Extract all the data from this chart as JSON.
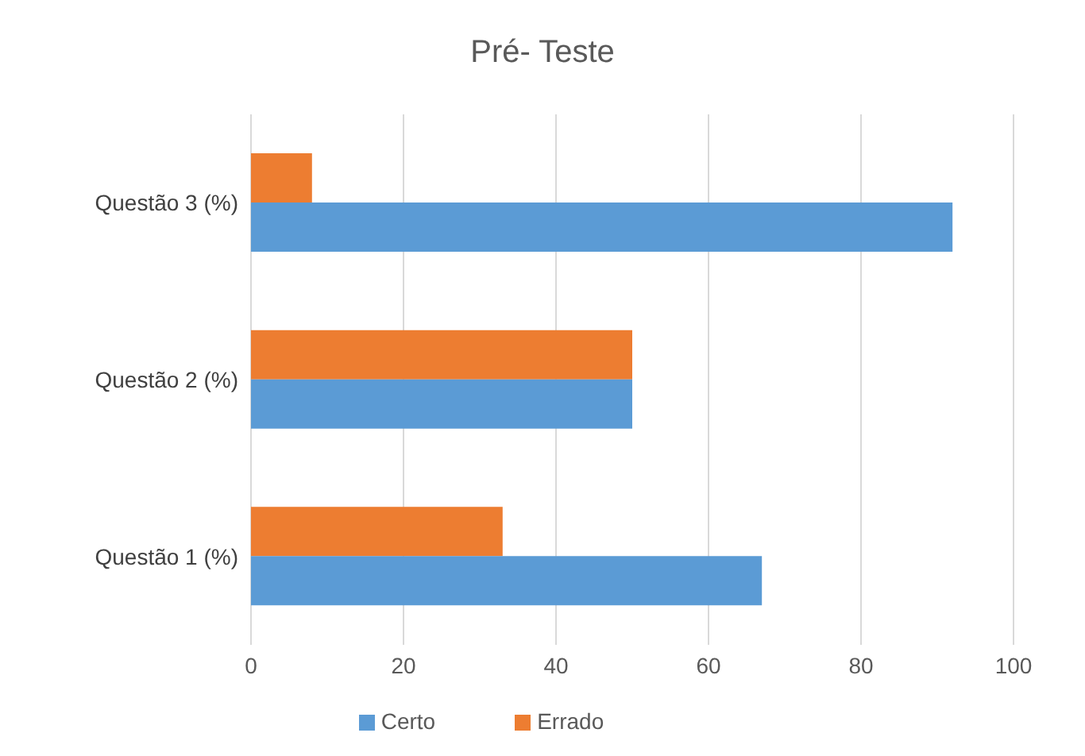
{
  "chart_data": {
    "type": "bar",
    "orientation": "horizontal",
    "title": "Pré- Teste",
    "categories": [
      "Questão 3 (%)",
      "Questão 2 (%)",
      "Questão 1 (%)"
    ],
    "series": [
      {
        "name": "Errado",
        "color": "#ed7d31",
        "values": [
          8,
          50,
          33
        ]
      },
      {
        "name": "Certo",
        "color": "#5b9bd5",
        "values": [
          92,
          50,
          67
        ]
      }
    ],
    "xlim": [
      0,
      100
    ],
    "xticks": [
      0,
      20,
      40,
      60,
      80,
      100
    ],
    "grid": "x",
    "legend": "bottom"
  }
}
